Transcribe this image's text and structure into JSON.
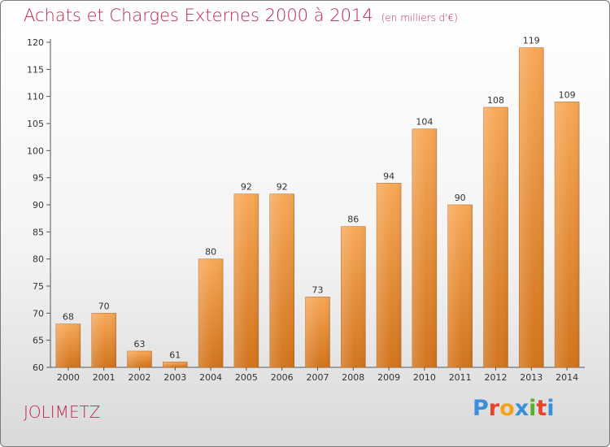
{
  "header": {
    "title": "Achats et Charges Externes 2000 à 2014",
    "unit": "(en milliers d'€)"
  },
  "footer": {
    "commune": "JOLIMETZ",
    "logo": "Proxiti",
    "logo_colors": [
      "#3a8fd8",
      "#e8432b",
      "#f4a41c",
      "#3a8fd8",
      "#58b030",
      "#e8432b",
      "#3a8fd8"
    ]
  },
  "colors": {
    "bar_top": "#f7a857",
    "bar_bottom": "#d2741c",
    "title": "#c0254f"
  },
  "chart_data": {
    "type": "bar",
    "categories": [
      "2000",
      "2001",
      "2002",
      "2003",
      "2004",
      "2005",
      "2006",
      "2007",
      "2008",
      "2009",
      "2010",
      "2011",
      "2012",
      "2013",
      "2014"
    ],
    "values": [
      68,
      70,
      63,
      61,
      80,
      92,
      92,
      73,
      86,
      94,
      104,
      90,
      108,
      119,
      109
    ],
    "ylim": [
      60,
      120
    ],
    "yticks": [
      60,
      65,
      70,
      75,
      80,
      85,
      90,
      95,
      100,
      105,
      110,
      115,
      120
    ],
    "grid": false,
    "xlabel": "",
    "ylabel": ""
  }
}
